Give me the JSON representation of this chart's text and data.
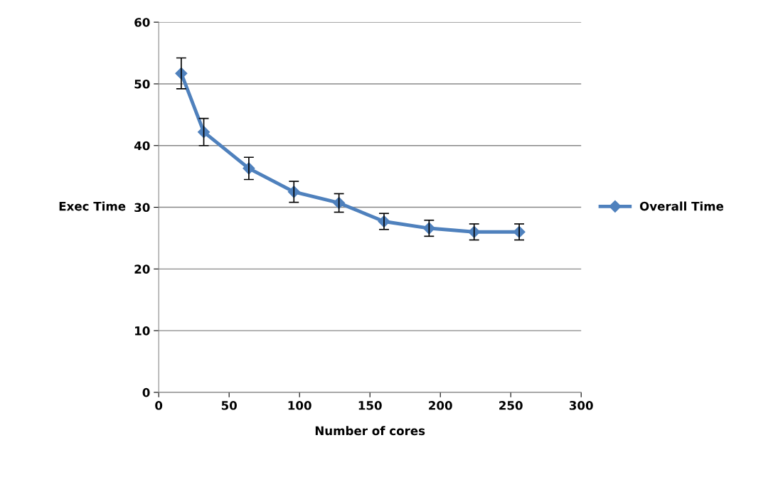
{
  "chart_data": {
    "type": "line",
    "xlabel": "Number of cores",
    "ylabel": "Exec Time",
    "x": [
      16,
      32,
      64,
      96,
      128,
      160,
      192,
      224,
      256
    ],
    "series": [
      {
        "name": "Overall Time",
        "color": "#4f81bd",
        "values": [
          51.7,
          42.2,
          36.3,
          32.5,
          30.7,
          27.7,
          26.6,
          26.0,
          26.0
        ],
        "errors": [
          2.5,
          2.2,
          1.8,
          1.7,
          1.5,
          1.3,
          1.3,
          1.3,
          1.3
        ]
      }
    ],
    "xlim": [
      0,
      300
    ],
    "xticks": [
      0,
      50,
      100,
      150,
      200,
      250,
      300
    ],
    "ylim": [
      0,
      60
    ],
    "yticks": [
      0,
      10,
      20,
      30,
      40,
      50,
      60
    ],
    "grid": "y",
    "legend": "right",
    "marker": "diamond",
    "line_style": "solid"
  }
}
